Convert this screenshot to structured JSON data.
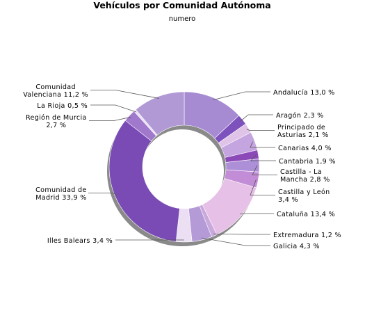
{
  "chart_data": {
    "type": "pie",
    "donut": true,
    "title": "Vehículos por Comunidad Autónoma",
    "subtitle": "numero",
    "start_angle_deg": 0,
    "direction": "clockwise",
    "slices": [
      {
        "label": [
          "Andalucía 13,0 %"
        ],
        "value": 13.0,
        "color": "#a68ad2",
        "side": "right"
      },
      {
        "label": [
          "Aragón 2,3 %"
        ],
        "value": 2.3,
        "color": "#7e52bd",
        "side": "right"
      },
      {
        "label": [
          "Principado de",
          "Asturias 2,1 %"
        ],
        "value": 2.1,
        "color": "#e0c4e8",
        "side": "right"
      },
      {
        "label": [
          "Canarias 4,0 %"
        ],
        "value": 4.0,
        "color": "#c4a5df",
        "side": "right"
      },
      {
        "label": [
          "Cantabria 1,9 %"
        ],
        "value": 1.9,
        "color": "#8c4ab8",
        "side": "right"
      },
      {
        "label": [
          "Castilla - La",
          "Mancha 2,8 %"
        ],
        "value": 2.8,
        "color": "#ad8fd8",
        "side": "right"
      },
      {
        "label": [
          "Castilla y León",
          "3,4 %"
        ],
        "value": 3.4,
        "color": "#c28dd6",
        "side": "right"
      },
      {
        "label": [
          "Cataluña 13,4 %"
        ],
        "value": 13.4,
        "color": "#e6c0e6",
        "side": "right"
      },
      {
        "label": [
          "Extremadura 1,2 %"
        ],
        "value": 1.2,
        "color": "#c9a8dc",
        "side": "right"
      },
      {
        "label": [
          "Galicia 4,3 %"
        ],
        "value": 4.3,
        "color": "#b49ad6",
        "side": "right"
      },
      {
        "label": [
          "Illes Balears 3,4 %"
        ],
        "value": 3.4,
        "color": "#ecdff4",
        "side": "left"
      },
      {
        "label": [
          "Comunidad de",
          "Madrid 33,9 %"
        ],
        "value": 33.9,
        "color": "#7a4bb5",
        "side": "left"
      },
      {
        "label": [
          "Región de Murcia",
          "2,7 %"
        ],
        "value": 2.7,
        "color": "#a078cc",
        "side": "left"
      },
      {
        "label": [
          "La Rioja 0,5 %"
        ],
        "value": 0.5,
        "color": "#eadff2",
        "side": "left"
      },
      {
        "label": [
          "Comunidad",
          "Valenciana 11,2 %"
        ],
        "value": 11.2,
        "color": "#b199d6",
        "side": "left"
      }
    ]
  }
}
